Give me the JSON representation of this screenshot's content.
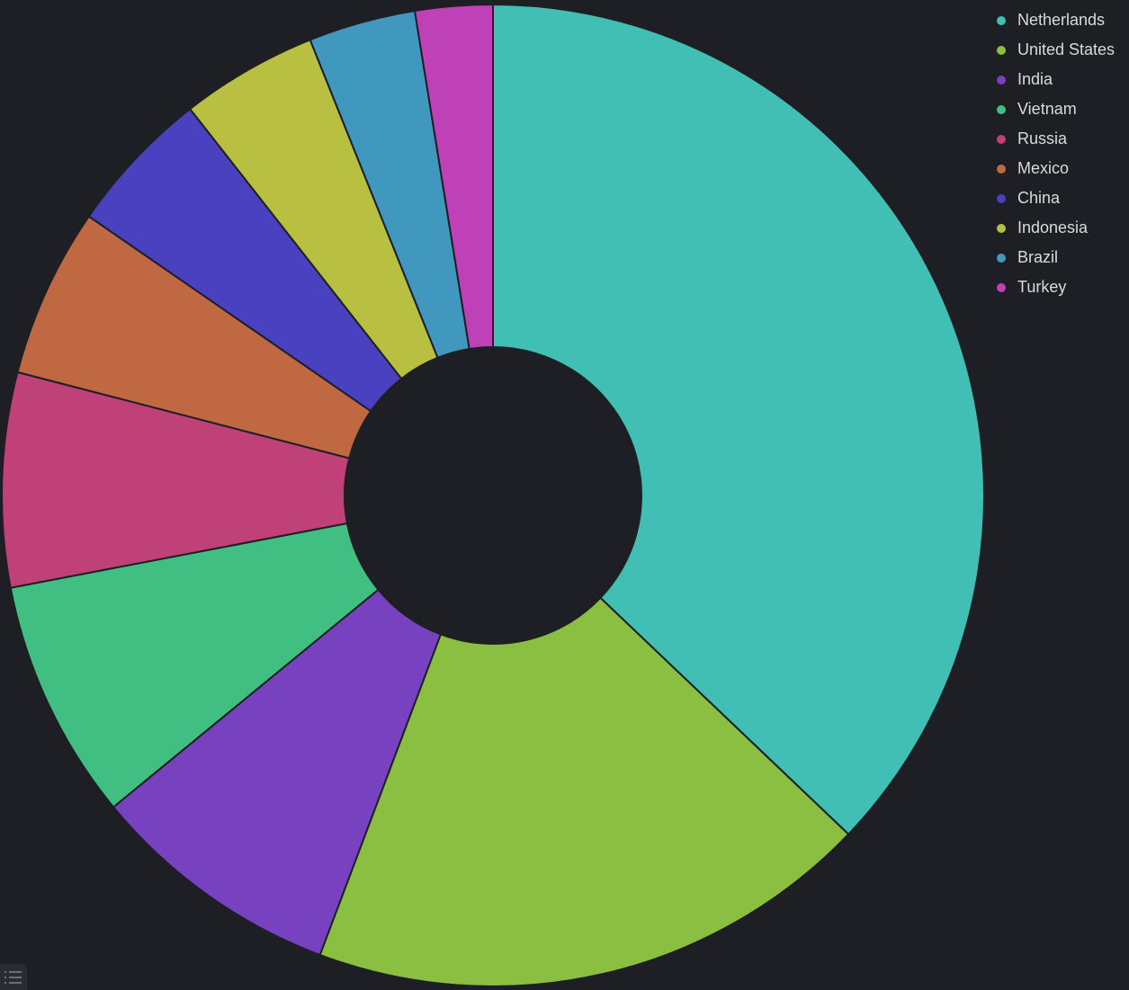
{
  "chart_data": {
    "type": "pie",
    "variant": "donut",
    "slices": [
      {
        "label": "Netherlands",
        "value": 37.9,
        "color": "#41bfb5"
      },
      {
        "label": "United States",
        "value": 19.0,
        "color": "#8abf41"
      },
      {
        "label": "India",
        "value": 8.5,
        "color": "#7841bf"
      },
      {
        "label": "Vietnam",
        "value": 8.1,
        "color": "#41bf83"
      },
      {
        "label": "Russia",
        "value": 7.2,
        "color": "#bf4178"
      },
      {
        "label": "Mexico",
        "value": 5.7,
        "color": "#bf6841"
      },
      {
        "label": "China",
        "value": 4.9,
        "color": "#4941bf"
      },
      {
        "label": "Indonesia",
        "value": 4.6,
        "color": "#b8bf41"
      },
      {
        "label": "Brazil",
        "value": 3.6,
        "color": "#4198bf"
      },
      {
        "label": "Turkey",
        "value": 2.6,
        "color": "#bf41b8"
      }
    ],
    "legend_position": "top-right",
    "background": "#1e1f24"
  },
  "ui": {
    "legend_toggle_icon": "list-icon"
  }
}
